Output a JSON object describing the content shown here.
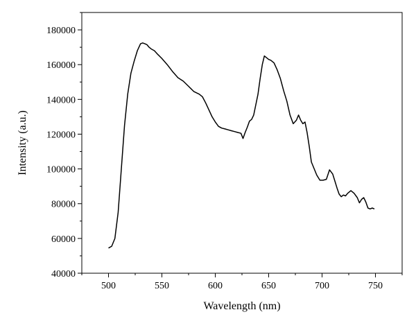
{
  "chart_data": {
    "type": "line",
    "title": "",
    "xlabel": "Wavelength (nm)",
    "ylabel": "Intensity (a.u.)",
    "xlim": [
      475,
      775
    ],
    "ylim": [
      40000,
      190000
    ],
    "xticks": [
      500,
      550,
      600,
      650,
      700,
      750
    ],
    "yticks": [
      40000,
      60000,
      80000,
      100000,
      120000,
      140000,
      160000,
      180000
    ],
    "grid": false,
    "legend": "none",
    "series": [
      {
        "color": "#000000",
        "x": [
          500,
          503,
          506,
          509,
          512,
          515,
          518,
          521,
          524,
          527,
          530,
          532,
          534,
          536,
          538,
          540,
          543,
          546,
          550,
          555,
          560,
          565,
          570,
          575,
          580,
          585,
          588,
          591,
          594,
          597,
          600,
          603,
          606,
          609,
          612,
          615,
          618,
          621,
          624,
          626,
          628,
          630,
          632,
          634,
          636,
          638,
          640,
          642,
          644,
          646,
          648,
          650,
          652,
          655,
          658,
          661,
          664,
          667,
          670,
          673,
          676,
          678,
          680,
          682,
          684,
          686,
          688,
          690,
          692,
          695,
          698,
          701,
          704,
          707,
          710,
          712,
          714,
          716,
          718,
          720,
          722,
          724,
          727,
          730,
          733,
          735,
          737,
          739,
          741,
          743,
          745,
          747,
          749
        ],
        "y": [
          54500,
          55500,
          60000,
          75000,
          100000,
          125000,
          143000,
          155000,
          162000,
          168000,
          172000,
          172500,
          172000,
          171500,
          170000,
          169000,
          168000,
          166000,
          163500,
          160000,
          156000,
          152500,
          150500,
          147500,
          144500,
          143000,
          141500,
          138000,
          134000,
          130000,
          127000,
          124500,
          123500,
          123000,
          122500,
          122000,
          121500,
          121000,
          120500,
          117500,
          121000,
          124000,
          127500,
          128500,
          131000,
          137000,
          143000,
          152000,
          160000,
          165000,
          164000,
          163000,
          162500,
          161000,
          157000,
          152000,
          145000,
          139000,
          131000,
          126000,
          128000,
          131000,
          128000,
          126000,
          127000,
          121000,
          113000,
          104000,
          101000,
          96500,
          93500,
          93500,
          94000,
          99500,
          97000,
          93000,
          89000,
          85500,
          84000,
          85000,
          84500,
          86000,
          87500,
          86000,
          83500,
          80500,
          82500,
          83500,
          81000,
          77500,
          77000,
          77500,
          77000
        ]
      }
    ]
  }
}
